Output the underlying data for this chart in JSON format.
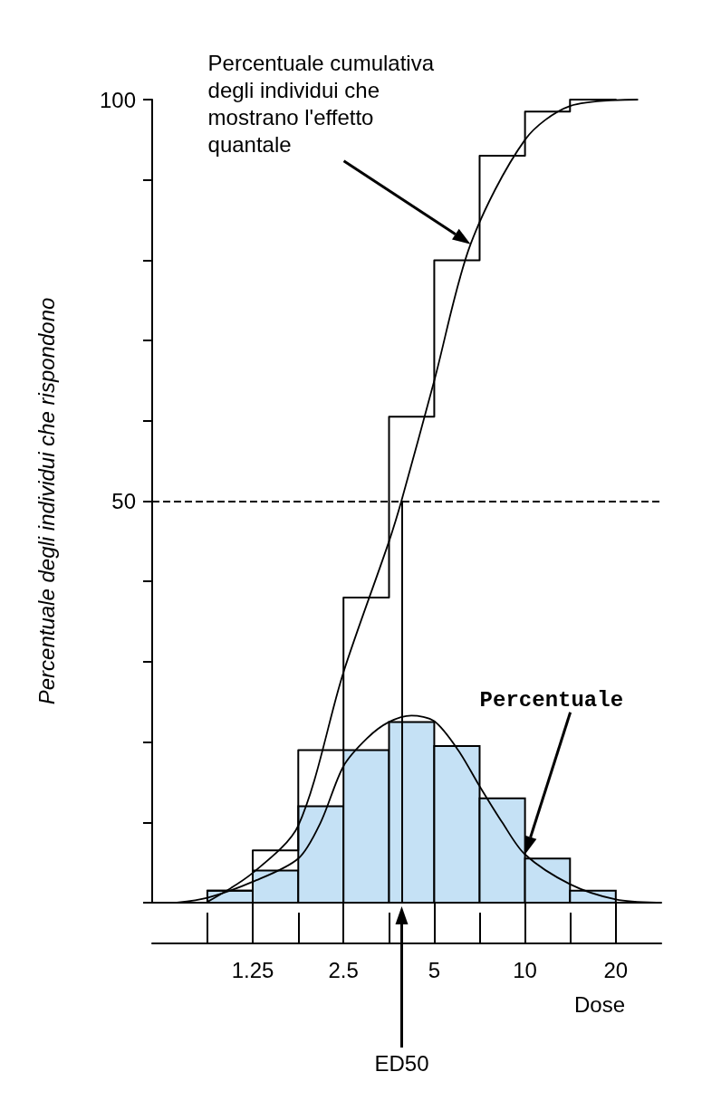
{
  "chart_data": {
    "type": "histogram",
    "ylabel": "Percentuale degli individui che rispondono",
    "xlabel": "Dose",
    "log": "x",
    "bins": [
      0.884,
      1.25,
      1.77,
      2.5,
      3.54,
      5,
      7.07,
      10,
      14.1,
      20
    ],
    "series": [
      {
        "color": "#c5e1f5",
        "values": [
          1.5,
          4,
          12,
          19,
          22.5,
          19.5,
          13,
          5.5,
          1.5
        ]
      },
      {
        "type": "step",
        "color": "#000000",
        "x": [
          0.884,
          1.25,
          1.77,
          2.5,
          3.54,
          5,
          7.07,
          10,
          14.1,
          20
        ],
        "values": [
          1.5,
          6.5,
          19,
          38,
          60.5,
          80,
          93,
          98.5,
          100,
          100
        ]
      },
      {
        "type": "line",
        "color": "#000000",
        "x": [
          0.884,
          1.25,
          1.77,
          2.5,
          3.54,
          3.89,
          5,
          6.6,
          10,
          14.1,
          23.6
        ],
        "values": [
          0.1,
          3.7,
          9.6,
          28.7,
          45,
          50,
          65,
          82,
          95,
          99.2,
          100
        ]
      },
      {
        "type": "line",
        "color": "#000000",
        "x": [
          0.7,
          0.884,
          1.25,
          1.77,
          2.1,
          2.5,
          3.0,
          3.54,
          4.2,
          5,
          6,
          7.07,
          8.4,
          10,
          14.1,
          20,
          27.3
        ],
        "values": [
          0,
          0.6,
          2.6,
          5.5,
          10,
          17,
          20.5,
          22.5,
          23.3,
          22.6,
          19,
          14.5,
          10,
          6,
          2.3,
          0.4,
          0
        ]
      }
    ],
    "xlim": [
      0.58,
      28.3
    ],
    "xticks": [
      1.25,
      2.5,
      5,
      10,
      20
    ],
    "ylim": [
      0,
      100
    ],
    "yticks": [
      {
        "value": 0,
        "label": null
      },
      {
        "value": 10,
        "label": null
      },
      {
        "value": 20,
        "label": null
      },
      {
        "value": 30,
        "label": null
      },
      {
        "value": 40,
        "label": null
      },
      50,
      {
        "value": 60,
        "label": null
      },
      {
        "value": 70,
        "label": null
      },
      {
        "value": 80,
        "label": null
      },
      {
        "value": 90,
        "label": null
      },
      100
    ],
    "ref_lines": [
      {
        "axis": "y",
        "value": 50,
        "line_style": "dashed"
      },
      {
        "axis": "x",
        "value": 3.9,
        "label": "ED50"
      }
    ],
    "annotations": [
      "Percentuale cumulativa degli individui che mostrano l'effetto quantale",
      "Percentuale"
    ],
    "marker": "none"
  }
}
